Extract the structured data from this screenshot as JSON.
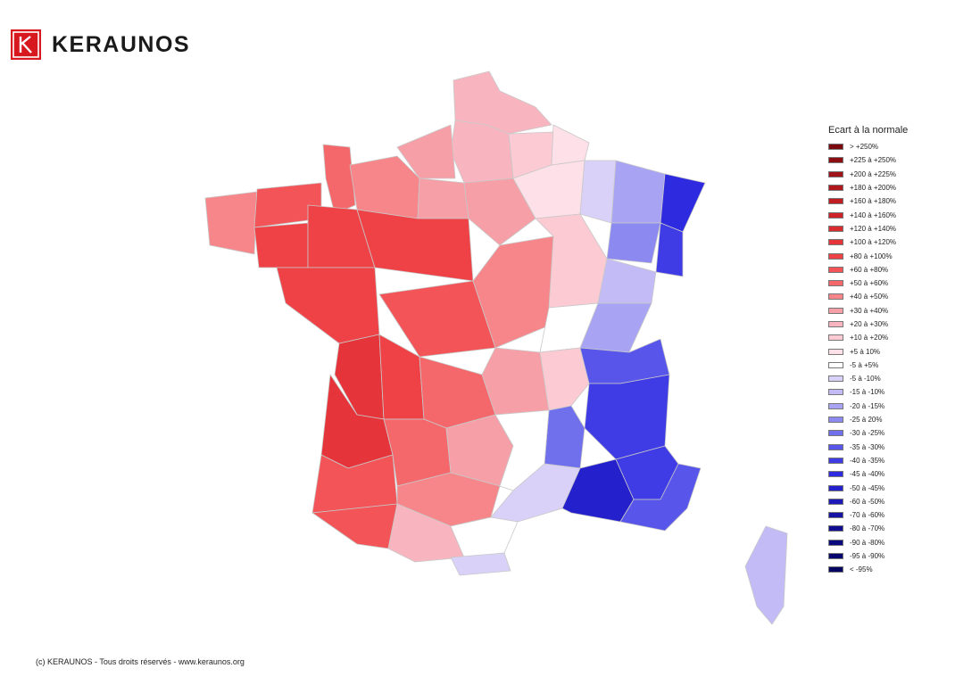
{
  "brand": {
    "name": "KERAUNOS",
    "logo_letter": "K",
    "logo_color": "#d7191f"
  },
  "legend": {
    "title": "Ecart à la normale",
    "items": [
      {
        "label": "> +250%",
        "color": "#7a0a0e"
      },
      {
        "label": "+225 à +250%",
        "color": "#8c0e13"
      },
      {
        "label": "+200 à +225%",
        "color": "#a01318"
      },
      {
        "label": "+180 à +200%",
        "color": "#b0171c"
      },
      {
        "label": "+160 à +180%",
        "color": "#c01c21"
      },
      {
        "label": "+140 à +160%",
        "color": "#cd2328"
      },
      {
        "label": "+120 à +140%",
        "color": "#d92c30"
      },
      {
        "label": "+100 à +120%",
        "color": "#e6353a"
      },
      {
        "label": "+80 à +100%",
        "color": "#ef4246"
      },
      {
        "label": "+60 à +80%",
        "color": "#f25458"
      },
      {
        "label": "+50 à +60%",
        "color": "#f4686c"
      },
      {
        "label": "+40 à +50%",
        "color": "#f6868a"
      },
      {
        "label": "+30 à +40%",
        "color": "#f79fa7"
      },
      {
        "label": "+20 à +30%",
        "color": "#f8b5bf"
      },
      {
        "label": "+10 à +20%",
        "color": "#fbcad3"
      },
      {
        "label": "+5 à 10%",
        "color": "#fde0e8"
      },
      {
        "label": "-5 à +5%",
        "color": "#ffffff"
      },
      {
        "label": "-5 à -10%",
        "color": "#d9d1f8"
      },
      {
        "label": "-15 à -10%",
        "color": "#c2bbf6"
      },
      {
        "label": "-20 à -15%",
        "color": "#a8a4f3"
      },
      {
        "label": "-25 à 20%",
        "color": "#8c8af0"
      },
      {
        "label": "-30 à -25%",
        "color": "#7170ec"
      },
      {
        "label": "-35 à -30%",
        "color": "#5856ea"
      },
      {
        "label": "-40 à -35%",
        "color": "#3f3ce6"
      },
      {
        "label": "-45 à -40%",
        "color": "#2e2ae0"
      },
      {
        "label": "-50 à -45%",
        "color": "#2421cc"
      },
      {
        "label": "-60 à -50%",
        "color": "#1c19b8"
      },
      {
        "label": "-70 à -60%",
        "color": "#1512a4"
      },
      {
        "label": "-80 à -70%",
        "color": "#100d90"
      },
      {
        "label": "-90 à -80%",
        "color": "#0b097e"
      },
      {
        "label": "-95 à -90%",
        "color": "#07056e"
      },
      {
        "label": "< -95%",
        "color": "#040360"
      }
    ]
  },
  "map_regions": [
    {
      "name": "nord-pas-de-calais",
      "color": "#f8b5bf"
    },
    {
      "name": "picardie-somme",
      "color": "#f8b5bf"
    },
    {
      "name": "manche-normandie-west",
      "color": "#f4686c"
    },
    {
      "name": "seine-maritime",
      "color": "#f79fa7"
    },
    {
      "name": "calvados-orne",
      "color": "#f6868a"
    },
    {
      "name": "eure",
      "color": "#f79fa7"
    },
    {
      "name": "oise-aisne",
      "color": "#fbcad3"
    },
    {
      "name": "ardennes",
      "color": "#fde0e8"
    },
    {
      "name": "marne",
      "color": "#fde0e8"
    },
    {
      "name": "meuse",
      "color": "#d9d1f8"
    },
    {
      "name": "moselle-meurthe",
      "color": "#a8a4f3"
    },
    {
      "name": "vosges",
      "color": "#8c8af0"
    },
    {
      "name": "bas-rhin",
      "color": "#2e2ae0"
    },
    {
      "name": "haut-rhin",
      "color": "#3f3ce6"
    },
    {
      "name": "finistere",
      "color": "#f6868a"
    },
    {
      "name": "cotes-armor",
      "color": "#f25458"
    },
    {
      "name": "morbihan",
      "color": "#ef4246"
    },
    {
      "name": "ille-et-vilaine-mayenne",
      "color": "#ef4246"
    },
    {
      "name": "ile-de-france",
      "color": "#f79fa7"
    },
    {
      "name": "sarthe-loir",
      "color": "#ef4246"
    },
    {
      "name": "loire-atlantique-vendee",
      "color": "#ef4246"
    },
    {
      "name": "indre-cher",
      "color": "#f25458"
    },
    {
      "name": "yonne-nievre",
      "color": "#f6868a"
    },
    {
      "name": "cote-dor",
      "color": "#fbcad3"
    },
    {
      "name": "haute-saone-doubs",
      "color": "#c2bbf6"
    },
    {
      "name": "jura-ain",
      "color": "#a8a4f3"
    },
    {
      "name": "saone-et-loire",
      "color": "#ffffff"
    },
    {
      "name": "allier-puy",
      "color": "#f79fa7"
    },
    {
      "name": "charente-maritime",
      "color": "#e6353a"
    },
    {
      "name": "charentes-vienne",
      "color": "#ef4246"
    },
    {
      "name": "limousin",
      "color": "#f4686c"
    },
    {
      "name": "rhone-loire",
      "color": "#fbcad3"
    },
    {
      "name": "savoie",
      "color": "#5856ea"
    },
    {
      "name": "isere-drome",
      "color": "#3f3ce6"
    },
    {
      "name": "ardeche",
      "color": "#7170ec"
    },
    {
      "name": "gironde",
      "color": "#e6353a"
    },
    {
      "name": "landes",
      "color": "#f25458"
    },
    {
      "name": "dordogne-lot",
      "color": "#f4686c"
    },
    {
      "name": "aveyron-cantal",
      "color": "#f79fa7"
    },
    {
      "name": "lozere",
      "color": "#ffffff"
    },
    {
      "name": "gard-herault",
      "color": "#d9d1f8"
    },
    {
      "name": "vaucluse-bouches",
      "color": "#2421cc"
    },
    {
      "name": "alpes-hautes",
      "color": "#3f3ce6"
    },
    {
      "name": "alpes-maritimes-var",
      "color": "#5856ea"
    },
    {
      "name": "pyrenees-atlantiques",
      "color": "#f25458"
    },
    {
      "name": "gers-tarn",
      "color": "#f6868a"
    },
    {
      "name": "haute-garonne-ariege",
      "color": "#f8b5bf"
    },
    {
      "name": "aude",
      "color": "#ffffff"
    },
    {
      "name": "pyrenees-orientales",
      "color": "#d9d1f8"
    },
    {
      "name": "corse",
      "color": "#c2bbf6"
    }
  ],
  "footer": "(c) KERAUNOS - Tous droits réservés - www.keraunos.org"
}
